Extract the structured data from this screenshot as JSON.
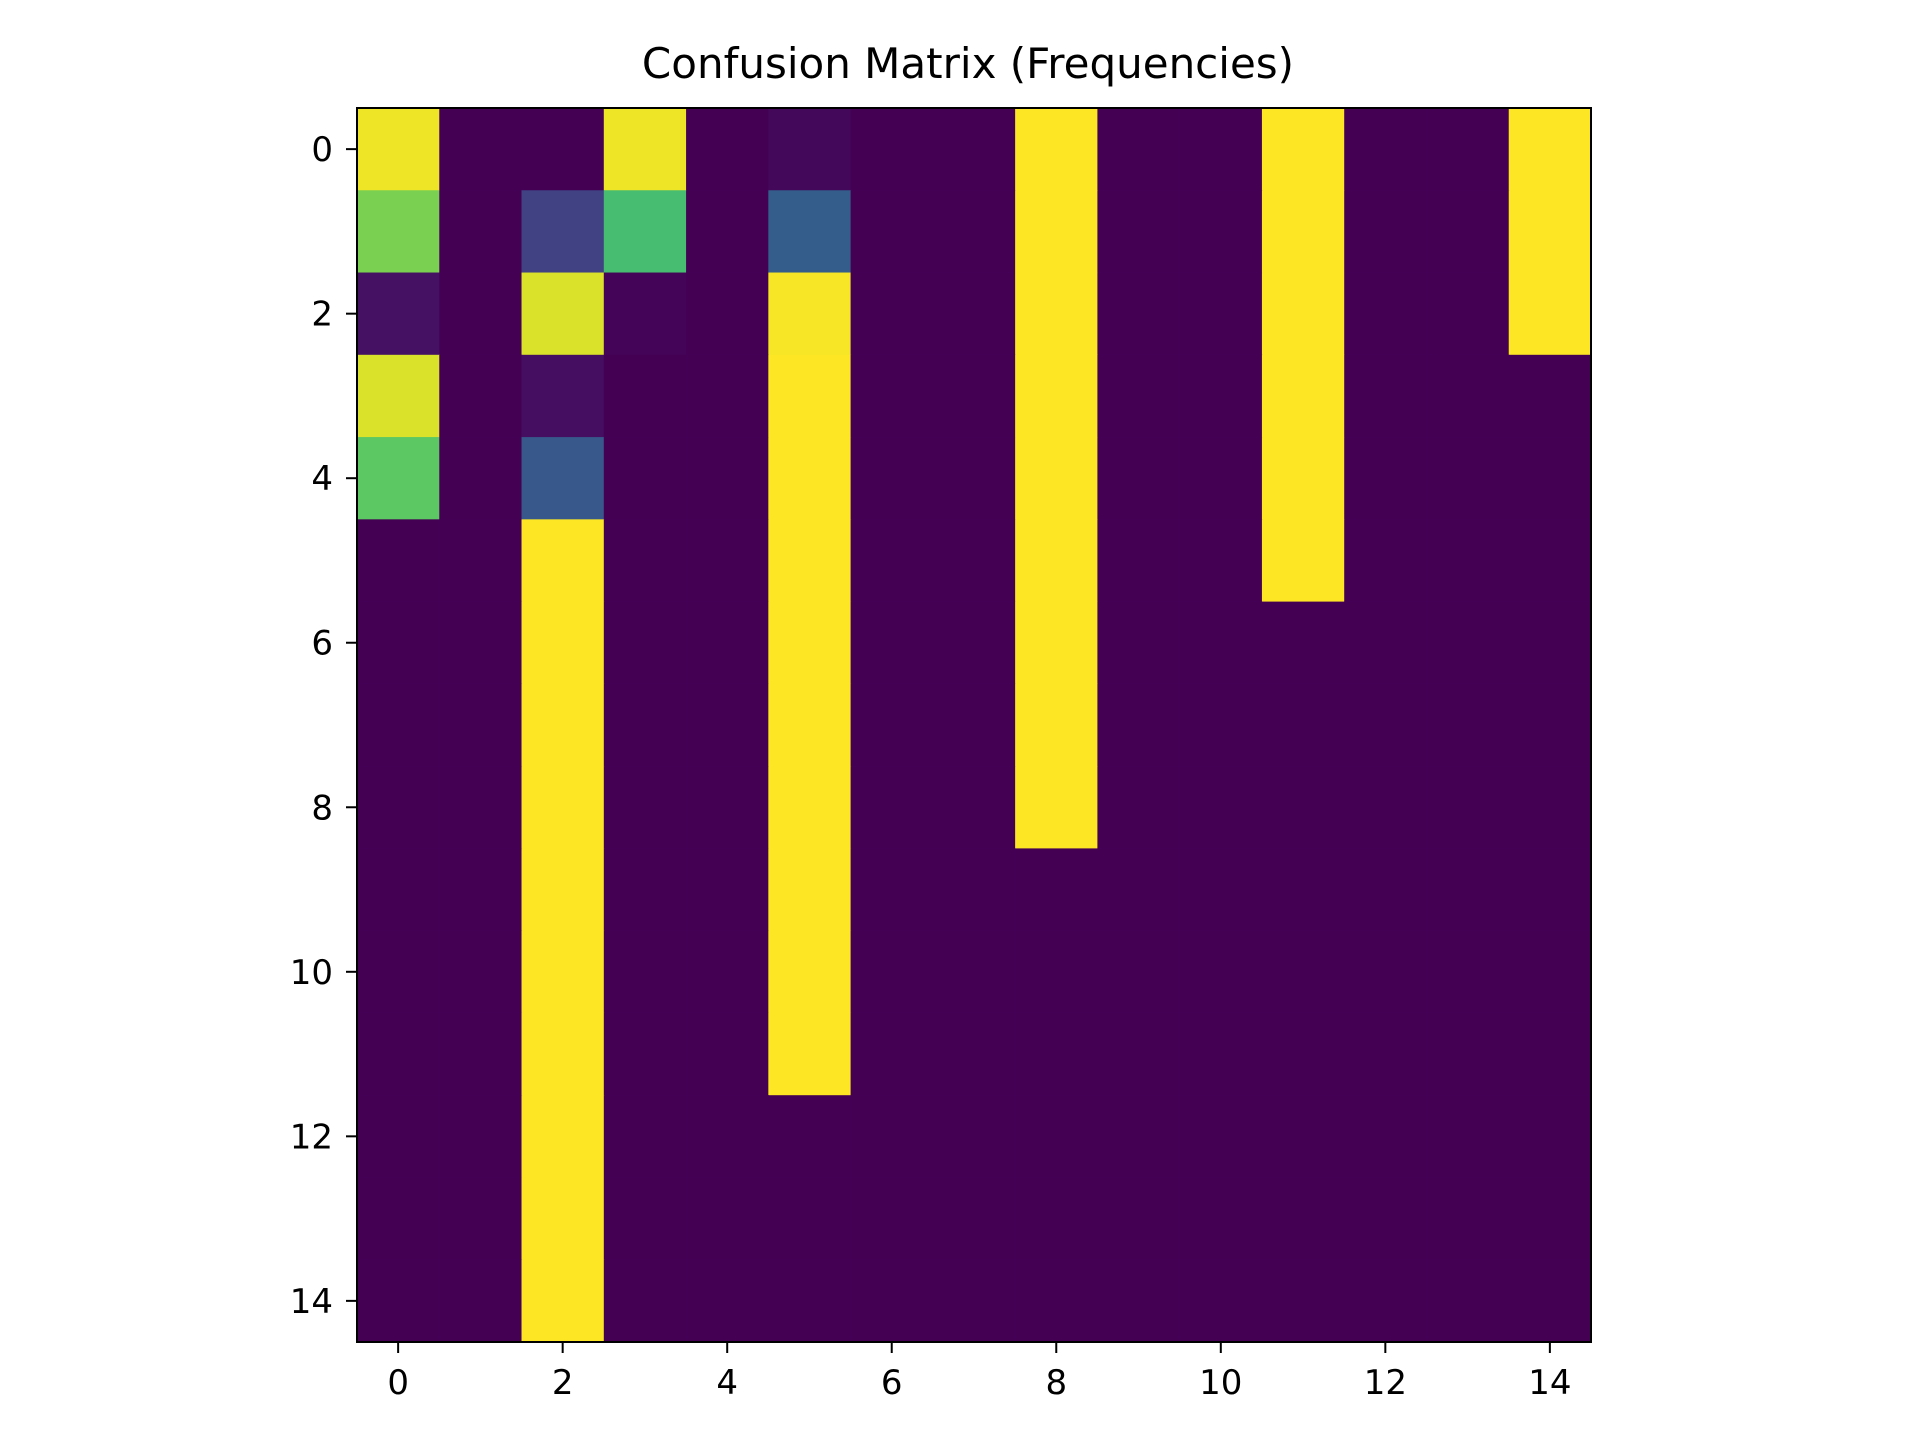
{
  "chart_data": {
    "type": "heatmap",
    "title": "Confusion Matrix (Frequencies)",
    "xlabel": "",
    "ylabel": "",
    "rows": 15,
    "cols": 15,
    "x_ticks": [
      "0",
      "2",
      "4",
      "6",
      "8",
      "10",
      "12",
      "14"
    ],
    "y_ticks": [
      "0",
      "2",
      "4",
      "6",
      "8",
      "10",
      "12",
      "14"
    ],
    "colormap": "viridis",
    "value_range": [
      0,
      1
    ],
    "grid": false,
    "matrix": [
      [
        0.98,
        0,
        0,
        0.98,
        0,
        0.02,
        0,
        0,
        1,
        0,
        0,
        1,
        0,
        0,
        1
      ],
      [
        0.8,
        0,
        0.2,
        0.7,
        0,
        0.3,
        0,
        0,
        1,
        0,
        0,
        1,
        0,
        0,
        1
      ],
      [
        0.05,
        0,
        0.95,
        0.01,
        0,
        0.99,
        0,
        0,
        1,
        0,
        0,
        1,
        0,
        0,
        1
      ],
      [
        0.95,
        0,
        0.04,
        0,
        0,
        1,
        0,
        0,
        1,
        0,
        0,
        1,
        0,
        0,
        0
      ],
      [
        0.75,
        0,
        0.28,
        0,
        0,
        1,
        0,
        0,
        1,
        0,
        0,
        1,
        0,
        0,
        0
      ],
      [
        0,
        0,
        1,
        0,
        0,
        1,
        0,
        0,
        1,
        0,
        0,
        1,
        0,
        0,
        0
      ],
      [
        0,
        0,
        1,
        0,
        0,
        1,
        0,
        0,
        1,
        0,
        0,
        0,
        0,
        0,
        0
      ],
      [
        0,
        0,
        1,
        0,
        0,
        1,
        0,
        0,
        1,
        0,
        0,
        0,
        0,
        0,
        0
      ],
      [
        0,
        0,
        1,
        0,
        0,
        1,
        0,
        0,
        1,
        0,
        0,
        0,
        0,
        0,
        0
      ],
      [
        0,
        0,
        1,
        0,
        0,
        1,
        0,
        0,
        0,
        0,
        0,
        0,
        0,
        0,
        0
      ],
      [
        0,
        0,
        1,
        0,
        0,
        1,
        0,
        0,
        0,
        0,
        0,
        0,
        0,
        0,
        0
      ],
      [
        0,
        0,
        1,
        0,
        0,
        1,
        0,
        0,
        0,
        0,
        0,
        0,
        0,
        0,
        0
      ],
      [
        0,
        0,
        1,
        0,
        0,
        0,
        0,
        0,
        0,
        0,
        0,
        0,
        0,
        0,
        0
      ],
      [
        0,
        0,
        1,
        0,
        0,
        0,
        0,
        0,
        0,
        0,
        0,
        0,
        0,
        0,
        0
      ],
      [
        0,
        0,
        1,
        0,
        0,
        0,
        0,
        0,
        0,
        0,
        0,
        0,
        0,
        0,
        0
      ]
    ]
  }
}
